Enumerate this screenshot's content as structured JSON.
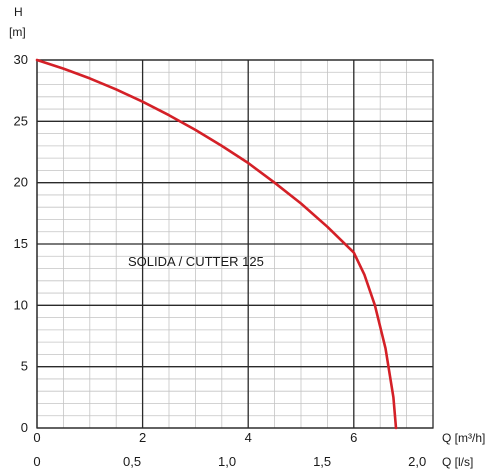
{
  "chart_data": {
    "type": "line",
    "y_axis": {
      "label": "H",
      "unit": "[m]",
      "ticks": [
        "0",
        "5",
        "10",
        "15",
        "20",
        "25",
        "30"
      ],
      "lim": [
        0,
        30
      ],
      "major_step": 5,
      "minor_step": 1
    },
    "x_axis_primary": {
      "label": "Q [m³/h]",
      "ticks": [
        "0",
        "2",
        "4",
        "6"
      ],
      "lim": [
        0,
        7.5
      ],
      "major_step": 2,
      "minor_step": 0.5
    },
    "x_axis_secondary": {
      "label": "Q [l/s]",
      "ticks": [
        "0",
        "0,5",
        "1,0",
        "1,5",
        "2,0"
      ],
      "tick_values": [
        0,
        0.5,
        1.0,
        1.5,
        2.0
      ]
    },
    "grid": true,
    "annotation": "SOLIDA / CUTTER 125",
    "series": [
      {
        "color": "#d42027",
        "x": [
          0,
          0.5,
          1,
          1.5,
          2,
          2.5,
          3,
          3.5,
          4,
          4.5,
          5,
          5.5,
          6,
          6.2,
          6.4,
          6.6,
          6.75,
          6.8
        ],
        "y": [
          30,
          29.3,
          28.5,
          27.6,
          26.6,
          25.5,
          24.3,
          23.0,
          21.6,
          20.0,
          18.3,
          16.4,
          14.3,
          12.5,
          10.0,
          6.5,
          2.5,
          0
        ]
      }
    ]
  }
}
